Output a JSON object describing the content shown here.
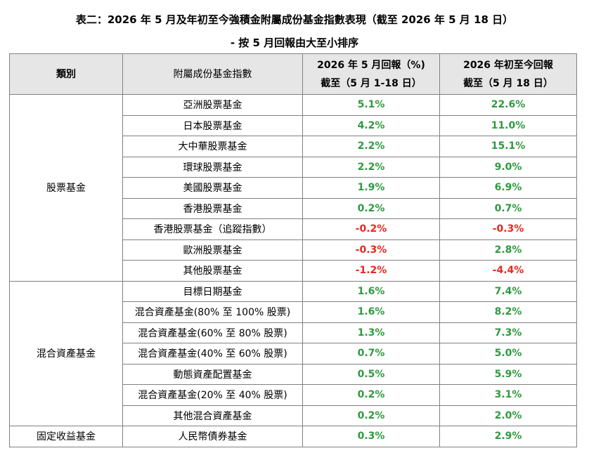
{
  "title_line1": "表二：2026 年 5 月及年初至今強積金附屬成份基金指數表現（截至 2026 年 5 月 18 日）",
  "title_line2": "- 按 5 月回報由大至小排序",
  "headers": {
    "category": "類別",
    "index": "附屬成份基金指數",
    "may_return_line1": "2026 年 5 月回報（%)",
    "may_return_line2": "截至（5 月 1-18 日）",
    "ytd_return_line1": "2026 年初至今回報",
    "ytd_return_line2": "截至（5 月 18 日）"
  },
  "colors": {
    "positive": "#2e9a3e",
    "negative": "#e8281e",
    "header_bg": "#e7e6e6",
    "border": "#808080"
  },
  "groups": [
    {
      "category": "股票基金",
      "rows": [
        {
          "name": "亞洲股票基金",
          "may": "5.1%",
          "ytd": "22.6%"
        },
        {
          "name": "日本股票基金",
          "may": "4.2%",
          "ytd": "11.0%"
        },
        {
          "name": "大中華股票基金",
          "may": "2.2%",
          "ytd": "15.1%"
        },
        {
          "name": "環球股票基金",
          "may": "2.2%",
          "ytd": "9.0%"
        },
        {
          "name": "美國股票基金",
          "may": "1.9%",
          "ytd": "6.9%"
        },
        {
          "name": "香港股票基金",
          "may": "0.2%",
          "ytd": "0.7%"
        },
        {
          "name": "香港股票基金（追蹤指數）",
          "may": "-0.2%",
          "ytd": "-0.3%"
        },
        {
          "name": "歐洲股票基金",
          "may": "-0.3%",
          "ytd": "2.8%"
        },
        {
          "name": "其他股票基金",
          "may": "-1.2%",
          "ytd": "-4.4%"
        }
      ]
    },
    {
      "category": "混合資產基金",
      "rows": [
        {
          "name": "目標日期基金",
          "may": "1.6%",
          "ytd": "7.4%"
        },
        {
          "name": "混合資產基金(80% 至 100% 股票)",
          "may": "1.6%",
          "ytd": "8.2%"
        },
        {
          "name": "混合資產基金(60% 至 80% 股票)",
          "may": "1.3%",
          "ytd": "7.3%"
        },
        {
          "name": "混合資產基金(40% 至 60% 股票)",
          "may": "0.7%",
          "ytd": "5.0%"
        },
        {
          "name": "動態資產配置基金",
          "may": "0.5%",
          "ytd": "5.9%"
        },
        {
          "name": "混合資產基金(20% 至 40% 股票)",
          "may": "0.2%",
          "ytd": "3.1%"
        },
        {
          "name": "其他混合資產基金",
          "may": "0.2%",
          "ytd": "2.0%"
        }
      ]
    },
    {
      "category": "固定收益基金",
      "rows": [
        {
          "name": "人民幣債券基金",
          "may": "0.3%",
          "ytd": "2.9%"
        }
      ]
    }
  ]
}
